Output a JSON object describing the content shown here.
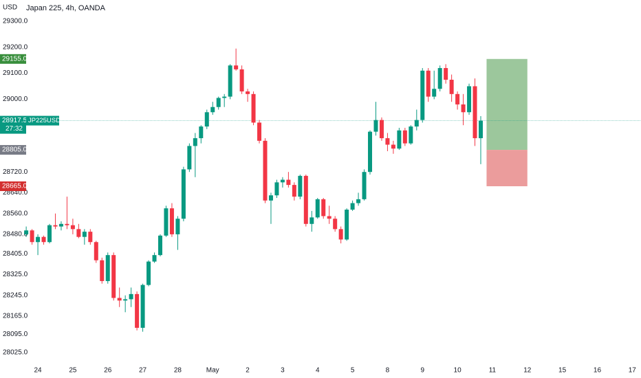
{
  "chart_data": {
    "type": "candlestick",
    "title": "Japan 225, 4h, OANDA",
    "y_axis_label": "USD",
    "up_color": "#089981",
    "down_color": "#f23645",
    "grid": false,
    "open": [
      28480,
      28495,
      28450,
      28470,
      28450,
      28515,
      28510,
      28520,
      28515,
      28500,
      28470,
      28490,
      28450,
      28380,
      28300,
      28400,
      28235,
      28225,
      28230,
      28250,
      28120,
      28285,
      28375,
      28400,
      28475,
      28580,
      28480,
      28540,
      28730,
      28820,
      28850,
      28895,
      28950,
      28970,
      29005,
      29010,
      29130,
      29115,
      29030,
      29020,
      28910,
      28840,
      28610,
      28630,
      28680,
      28690,
      28670,
      28625,
      28705,
      28520,
      28545,
      28615,
      28550,
      28540,
      28500,
      28460,
      28575,
      28600,
      28615,
      28720,
      28875,
      28920,
      28850,
      28825,
      28810,
      28880,
      28830,
      28895,
      28920,
      29110,
      29010,
      29040,
      29120,
      29075,
      29020,
      28980,
      28950,
      29050,
      28850
    ],
    "high": [
      28510,
      28500,
      28480,
      28475,
      28520,
      28560,
      28530,
      28625,
      28540,
      28520,
      28500,
      28500,
      28455,
      28390,
      28410,
      28410,
      28275,
      28245,
      28275,
      28260,
      28290,
      28380,
      28410,
      28480,
      28590,
      28600,
      28550,
      28740,
      28830,
      28870,
      28900,
      28960,
      28990,
      29010,
      29020,
      29135,
      29195,
      29130,
      29040,
      29030,
      28920,
      28850,
      28640,
      28690,
      28700,
      28720,
      28680,
      28710,
      28710,
      28570,
      28620,
      28620,
      28590,
      28550,
      28510,
      28580,
      28610,
      28640,
      28730,
      28880,
      28990,
      28930,
      28870,
      28840,
      28890,
      28890,
      28900,
      28960,
      29120,
      29120,
      29110,
      29130,
      29135,
      29095,
      29030,
      29020,
      29060,
      29080,
      28935
    ],
    "low": [
      28470,
      28440,
      28400,
      28440,
      28445,
      28500,
      28495,
      28500,
      28480,
      28465,
      28440,
      28440,
      28370,
      28290,
      28290,
      28225,
      28200,
      28180,
      28200,
      28110,
      28105,
      28280,
      28370,
      28395,
      28470,
      28470,
      28420,
      28530,
      28720,
      28700,
      28830,
      28885,
      28940,
      28960,
      28970,
      29000,
      29110,
      29020,
      28990,
      28900,
      28830,
      28600,
      28520,
      28620,
      28660,
      28660,
      28610,
      28615,
      28510,
      28490,
      28540,
      28540,
      28520,
      28490,
      28445,
      28455,
      28570,
      28590,
      28610,
      28710,
      28860,
      28840,
      28800,
      28790,
      28805,
      28820,
      28825,
      28880,
      28910,
      28990,
      29000,
      29030,
      29060,
      28990,
      28960,
      28900,
      28940,
      28820,
      28750
    ],
    "close": [
      28495,
      28450,
      28470,
      28450,
      28515,
      28510,
      28520,
      28515,
      28500,
      28470,
      28490,
      28450,
      28380,
      28300,
      28400,
      28235,
      28225,
      28230,
      28250,
      28120,
      28285,
      28375,
      28400,
      28475,
      28580,
      28480,
      28540,
      28730,
      28820,
      28850,
      28895,
      28950,
      28970,
      29005,
      29010,
      29130,
      29115,
      29030,
      29020,
      28910,
      28840,
      28610,
      28630,
      28680,
      28690,
      28670,
      28625,
      28705,
      28520,
      28545,
      28615,
      28550,
      28540,
      28500,
      28460,
      28575,
      28600,
      28615,
      28720,
      28875,
      28920,
      28850,
      28825,
      28810,
      28880,
      28830,
      28895,
      28920,
      29110,
      29010,
      29040,
      29120,
      29075,
      29020,
      28980,
      28950,
      29050,
      28850,
      28917.5
    ],
    "xlim": [
      -0.25,
      105.5
    ],
    "xticks": [
      {
        "value": 2,
        "label": "24"
      },
      {
        "value": 8,
        "label": "25"
      },
      {
        "value": 14,
        "label": "26"
      },
      {
        "value": 20,
        "label": "27"
      },
      {
        "value": 26,
        "label": "28"
      },
      {
        "value": 32,
        "label": "May"
      },
      {
        "value": 38,
        "label": "2"
      },
      {
        "value": 44,
        "label": "3"
      },
      {
        "value": 50,
        "label": "4"
      },
      {
        "value": 56,
        "label": "5"
      },
      {
        "value": 62,
        "label": "8"
      },
      {
        "value": 68,
        "label": "9"
      },
      {
        "value": 74,
        "label": "10"
      },
      {
        "value": 80,
        "label": "11"
      },
      {
        "value": 86,
        "label": "12"
      },
      {
        "value": 92,
        "label": "15"
      },
      {
        "value": 98,
        "label": "16"
      },
      {
        "value": 104,
        "label": "17"
      }
    ],
    "ylim": [
      27985,
      29382
    ],
    "yticks": [
      {
        "value": 29300,
        "label": "29300.0"
      },
      {
        "value": 29200,
        "label": "29200.0"
      },
      {
        "value": 29100,
        "label": "29100.0"
      },
      {
        "value": 29000,
        "label": "29000.0"
      },
      {
        "value": 28720,
        "label": "28720.0"
      },
      {
        "value": 28640,
        "label": "28640.0"
      },
      {
        "value": 28560,
        "label": "28560.0"
      },
      {
        "value": 28480,
        "label": "28480.0"
      },
      {
        "value": 28405,
        "label": "28405.0"
      },
      {
        "value": 28325,
        "label": "28325.0"
      },
      {
        "value": 28245,
        "label": "28245.0"
      },
      {
        "value": 28165,
        "label": "28165.0"
      },
      {
        "value": 28095,
        "label": "28095.0"
      },
      {
        "value": 28025,
        "label": "28025.0"
      }
    ],
    "position": {
      "start": 79,
      "end": 86,
      "entry": 28805,
      "target": 29155,
      "stop": 28665,
      "profit_color": "#9cc79c",
      "loss_color": "#eb9c9c"
    },
    "price_labels": [
      {
        "value": 29155,
        "label": "29155.0",
        "color": "#388e3c"
      },
      {
        "value": 28805,
        "label": "28805.0",
        "color": "#787b86"
      },
      {
        "value": 28665,
        "label": "28665.0",
        "color": "#d32f2f"
      }
    ],
    "current_price": {
      "value": 28917.5,
      "label": "28917.5",
      "symbol": "JP225USD",
      "countdown": "27:32",
      "color": "#089981"
    }
  }
}
